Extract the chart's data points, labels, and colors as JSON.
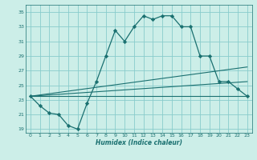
{
  "xlabel": "Humidex (Indice chaleur)",
  "bg_color": "#cceee8",
  "grid_color": "#88cccc",
  "line_color": "#1a7070",
  "xlim": [
    -0.5,
    23.5
  ],
  "ylim": [
    18.5,
    36.0
  ],
  "xticks": [
    0,
    1,
    2,
    3,
    4,
    5,
    6,
    7,
    8,
    9,
    10,
    11,
    12,
    13,
    14,
    15,
    16,
    17,
    18,
    19,
    20,
    21,
    22,
    23
  ],
  "yticks": [
    19,
    21,
    23,
    25,
    27,
    29,
    31,
    33,
    35
  ],
  "main_curve_x": [
    0,
    1,
    2,
    3,
    4,
    5,
    6,
    7,
    8,
    9,
    10,
    11,
    12,
    13,
    14,
    15,
    16,
    17,
    18,
    19,
    20,
    21,
    22,
    23
  ],
  "main_curve_y": [
    23.5,
    22.2,
    21.2,
    21.0,
    19.5,
    19.0,
    22.5,
    25.5,
    29.0,
    32.5,
    31.0,
    33.0,
    34.5,
    34.0,
    34.5,
    34.5,
    33.0,
    33.0,
    29.0,
    29.0,
    25.5,
    25.5,
    24.5,
    23.5
  ],
  "line1_x": [
    0,
    23
  ],
  "line1_y": [
    23.5,
    23.5
  ],
  "line2_x": [
    0,
    23
  ],
  "line2_y": [
    23.5,
    25.5
  ],
  "line3_x": [
    0,
    23
  ],
  "line3_y": [
    23.5,
    27.5
  ]
}
